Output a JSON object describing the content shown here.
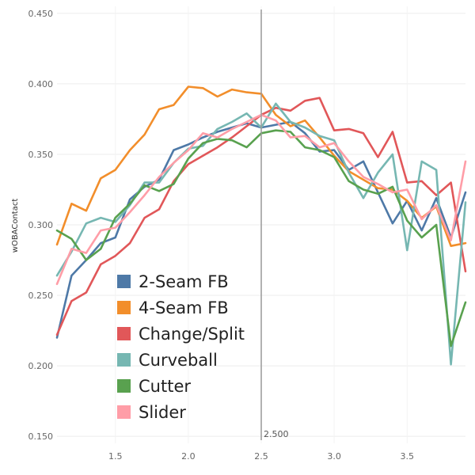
{
  "chart_data": {
    "type": "line",
    "title": "",
    "xlabel": "",
    "ylabel": "wOBAContact",
    "xlim": [
      1.1,
      3.9
    ],
    "ylim": [
      0.145,
      0.455
    ],
    "x_ticks": [
      1.5,
      2.0,
      2.5,
      3.0,
      3.5
    ],
    "x_tick_labels": [
      "1.5",
      "2.0",
      "2.5",
      "3.0",
      "3.5"
    ],
    "y_ticks": [
      0.15,
      0.2,
      0.25,
      0.3,
      0.35,
      0.4,
      0.45
    ],
    "y_tick_labels": [
      "0.150",
      "0.200",
      "0.250",
      "0.300",
      "0.350",
      "0.400",
      "0.450"
    ],
    "grid": true,
    "reference_line": {
      "x": 2.5,
      "label": "2.500"
    },
    "legend": "bottom-left",
    "x": [
      1.1,
      1.2,
      1.3,
      1.4,
      1.5,
      1.6,
      1.7,
      1.8,
      1.9,
      2.0,
      2.1,
      2.2,
      2.3,
      2.4,
      2.5,
      2.6,
      2.7,
      2.8,
      2.9,
      3.0,
      3.1,
      3.2,
      3.3,
      3.4,
      3.5,
      3.6,
      3.7,
      3.8,
      3.9
    ],
    "series": [
      {
        "name": "2-Seam FB",
        "color": "#4e79a7",
        "values": [
          0.22,
          0.264,
          0.275,
          0.287,
          0.291,
          0.318,
          0.327,
          0.332,
          0.353,
          0.357,
          0.362,
          0.366,
          0.369,
          0.372,
          0.369,
          0.371,
          0.373,
          0.365,
          0.352,
          0.353,
          0.339,
          0.345,
          0.323,
          0.301,
          0.317,
          0.296,
          0.319,
          0.291,
          0.323
        ]
      },
      {
        "name": "4-Seam FB",
        "color": "#f28e2b",
        "values": [
          0.286,
          0.315,
          0.31,
          0.333,
          0.339,
          0.353,
          0.364,
          0.382,
          0.385,
          0.398,
          0.397,
          0.391,
          0.396,
          0.394,
          0.393,
          0.378,
          0.37,
          0.374,
          0.362,
          0.349,
          0.338,
          0.332,
          0.326,
          0.325,
          0.317,
          0.305,
          0.313,
          0.285,
          0.287
        ]
      },
      {
        "name": "Change/Split",
        "color": "#e15759",
        "values": [
          0.222,
          0.246,
          0.252,
          0.272,
          0.278,
          0.287,
          0.305,
          0.311,
          0.331,
          0.343,
          0.349,
          0.355,
          0.362,
          0.37,
          0.378,
          0.383,
          0.381,
          0.388,
          0.39,
          0.367,
          0.368,
          0.365,
          0.348,
          0.366,
          0.33,
          0.331,
          0.321,
          0.33,
          0.267
        ]
      },
      {
        "name": "Curveball",
        "color": "#76b7b2",
        "values": [
          0.264,
          0.281,
          0.301,
          0.305,
          0.302,
          0.314,
          0.33,
          0.33,
          0.344,
          0.354,
          0.356,
          0.368,
          0.373,
          0.379,
          0.369,
          0.386,
          0.373,
          0.369,
          0.363,
          0.36,
          0.337,
          0.319,
          0.337,
          0.35,
          0.282,
          0.345,
          0.339,
          0.201,
          0.316
        ]
      },
      {
        "name": "Cutter",
        "color": "#59a14f",
        "values": [
          0.296,
          0.29,
          0.275,
          0.283,
          0.305,
          0.315,
          0.328,
          0.324,
          0.329,
          0.347,
          0.358,
          0.361,
          0.36,
          0.355,
          0.365,
          0.367,
          0.366,
          0.355,
          0.353,
          0.348,
          0.331,
          0.325,
          0.322,
          0.327,
          0.303,
          0.291,
          0.3,
          0.214,
          0.245
        ]
      },
      {
        "name": "Slider",
        "color": "#ff9da7",
        "values": [
          0.258,
          0.283,
          0.28,
          0.296,
          0.298,
          0.309,
          0.321,
          0.334,
          0.344,
          0.353,
          0.365,
          0.362,
          0.368,
          0.373,
          0.378,
          0.374,
          0.362,
          0.363,
          0.355,
          0.358,
          0.345,
          0.334,
          0.329,
          0.323,
          0.325,
          0.304,
          0.314,
          0.289,
          0.345
        ]
      }
    ]
  }
}
